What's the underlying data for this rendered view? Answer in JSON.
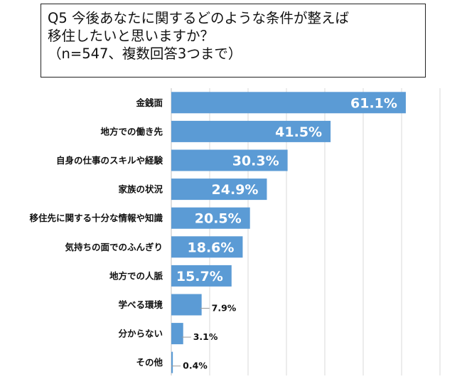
{
  "title": {
    "line1": "Q5 今後あなたに関するどのような条件が整えば",
    "line2": "移住したいと思いますか？",
    "line3": "（n=547、複数回答3つまで）"
  },
  "chart_data": {
    "type": "bar",
    "orientation": "horizontal",
    "title": "Q5 今後あなたに関するどのような条件が整えば移住したいと思いますか？（n=547、複数回答3つまで）",
    "categories": [
      "金銭面",
      "地方での働き先",
      "自身の仕事のスキルや経験",
      "家族の状況",
      "移住先に関する十分な情報や知識",
      "気持ちの面でのふんぎり",
      "地方での人脈",
      "学べる環境",
      "分からない",
      "その他"
    ],
    "values": [
      61.1,
      41.5,
      30.3,
      24.9,
      20.5,
      18.6,
      15.7,
      7.9,
      3.1,
      0.4
    ],
    "labels": [
      "61.1%",
      "41.5%",
      "30.3%",
      "24.9%",
      "20.5%",
      "18.6%",
      "15.7%",
      "7.9%",
      "3.1%",
      "0.4%"
    ],
    "xlim": [
      0,
      70
    ],
    "grid": true,
    "color": "#5b9bd5"
  }
}
